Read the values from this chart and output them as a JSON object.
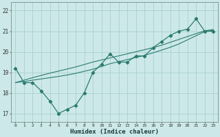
{
  "title": "",
  "xlabel": "Humidex (Indice chaleur)",
  "ylabel": "",
  "background_color": "#cce8e8",
  "line_color": "#2a7a70",
  "grid_color": "#aacfcf",
  "x_data": [
    0,
    1,
    2,
    3,
    4,
    5,
    6,
    7,
    8,
    9,
    10,
    11,
    12,
    13,
    14,
    15,
    16,
    17,
    18,
    19,
    20,
    21,
    22,
    23
  ],
  "y_main": [
    19.2,
    18.5,
    18.5,
    18.1,
    17.6,
    17.0,
    17.2,
    17.4,
    18.0,
    19.0,
    19.4,
    19.9,
    19.5,
    19.5,
    19.8,
    19.8,
    20.2,
    20.5,
    20.8,
    21.0,
    21.1,
    21.6,
    21.0,
    21.0
  ],
  "y_trend1": [
    18.5,
    18.55,
    18.62,
    18.68,
    18.74,
    18.8,
    18.87,
    18.95,
    19.05,
    19.15,
    19.28,
    19.42,
    19.52,
    19.62,
    19.72,
    19.82,
    19.95,
    20.08,
    20.22,
    20.38,
    20.58,
    20.78,
    20.98,
    21.05
  ],
  "y_trend2": [
    18.5,
    18.62,
    18.74,
    18.85,
    18.96,
    19.06,
    19.16,
    19.26,
    19.38,
    19.5,
    19.6,
    19.7,
    19.8,
    19.9,
    20.0,
    20.1,
    20.2,
    20.32,
    20.46,
    20.6,
    20.74,
    20.88,
    21.02,
    21.08
  ],
  "ylim": [
    16.6,
    22.4
  ],
  "xlim": [
    -0.5,
    23.5
  ],
  "yticks": [
    17,
    18,
    19,
    20,
    21,
    22
  ],
  "xticks": [
    0,
    1,
    2,
    3,
    4,
    5,
    6,
    7,
    8,
    9,
    10,
    11,
    12,
    13,
    14,
    15,
    16,
    17,
    18,
    19,
    20,
    21,
    22,
    23
  ]
}
